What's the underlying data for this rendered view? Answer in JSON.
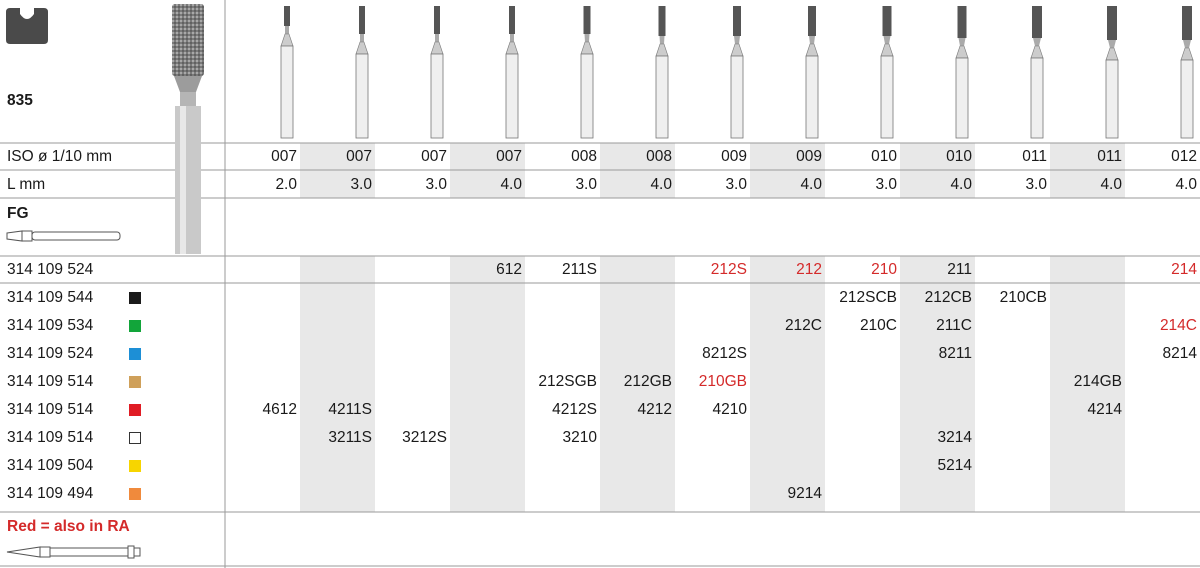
{
  "shape_code": "835",
  "header_rows": [
    {
      "label": "ISO ø 1/10 mm",
      "values": [
        "007",
        "007",
        "007",
        "007",
        "008",
        "008",
        "009",
        "009",
        "010",
        "010",
        "011",
        "011",
        "012"
      ]
    },
    {
      "label": "L mm",
      "values": [
        "2.0",
        "3.0",
        "3.0",
        "4.0",
        "3.0",
        "4.0",
        "3.0",
        "4.0",
        "3.0",
        "4.0",
        "3.0",
        "4.0",
        "4.0"
      ]
    }
  ],
  "shank_label": "FG",
  "first_row": {
    "code": "314 109 524",
    "cells": [
      "",
      "",
      "",
      "612",
      "211S",
      "",
      "212S",
      "212",
      "210",
      "211",
      "",
      "",
      "214"
    ],
    "red": [
      false,
      false,
      false,
      false,
      false,
      false,
      true,
      true,
      true,
      false,
      false,
      false,
      true
    ]
  },
  "rows": [
    {
      "code": "314 109 544",
      "swatch": "#1a1a1a",
      "cells": [
        "",
        "",
        "",
        "",
        "",
        "",
        "",
        "",
        "212SCB",
        "212CB",
        "210CB",
        "",
        ""
      ],
      "red": []
    },
    {
      "code": "314 109 534",
      "swatch": "#12a53a",
      "cells": [
        "",
        "",
        "",
        "",
        "",
        "",
        "",
        "212C",
        "210C",
        "211C",
        "",
        "",
        "214C"
      ],
      "red": [
        12
      ]
    },
    {
      "code": "314 109 524",
      "swatch": "#1d8fd6",
      "cells": [
        "",
        "",
        "",
        "",
        "",
        "",
        "8212S",
        "",
        "",
        "8211",
        "",
        "",
        "8214"
      ],
      "red": []
    },
    {
      "code": "314 109 514",
      "swatch": "#cfa05a",
      "cells": [
        "",
        "",
        "",
        "",
        "212SGB",
        "212GB",
        "210GB",
        "",
        "",
        "",
        "",
        "214GB",
        ""
      ],
      "red": [
        6
      ]
    },
    {
      "code": "314 109 514",
      "swatch": "#e01c24",
      "cells": [
        "4612",
        "4211S",
        "",
        "",
        "4212S",
        "4212",
        "4210",
        "",
        "",
        "",
        "",
        "4214",
        ""
      ],
      "red": []
    },
    {
      "code": "314 109 514",
      "swatch": "#ffffff",
      "cells": [
        "",
        "3211S",
        "3212S",
        "",
        "3210",
        "",
        "",
        "",
        "",
        "3214",
        "",
        "",
        ""
      ],
      "red": []
    },
    {
      "code": "314 109 504",
      "swatch": "#f7d500",
      "cells": [
        "",
        "",
        "",
        "",
        "",
        "",
        "",
        "",
        "",
        "5214",
        "",
        "",
        ""
      ],
      "red": []
    },
    {
      "code": "314 109 494",
      "swatch": "#f08a3c",
      "cells": [
        "",
        "",
        "",
        "",
        "",
        "",
        "",
        "9214",
        "",
        "",
        "",
        "",
        ""
      ],
      "red": []
    }
  ],
  "footnote": "Red = also in RA",
  "colors": {
    "red": "#d42a2a",
    "grid": "#9a9a9a",
    "shade": "#e8e8e8"
  }
}
